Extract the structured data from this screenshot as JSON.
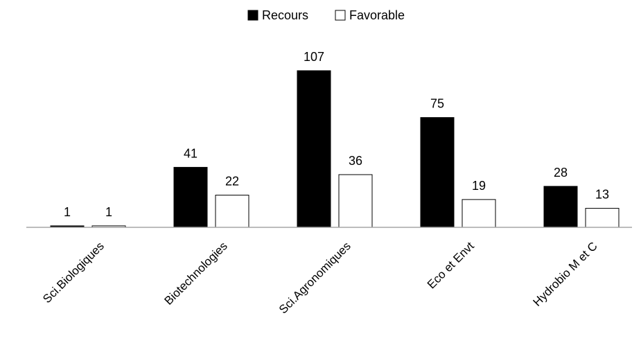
{
  "chart_data": {
    "type": "bar",
    "categories": [
      "Sci.Biologiques",
      "Biotechnologies",
      "Sci.Agronomiques",
      "Eco et Envt",
      "Hydrobio M et C"
    ],
    "series": [
      {
        "name": "Recours",
        "values": [
          1,
          41,
          107,
          75,
          28
        ],
        "color": "#000000"
      },
      {
        "name": "Favorable",
        "values": [
          1,
          22,
          36,
          19,
          13
        ],
        "color": "#ffffff"
      }
    ],
    "title": "",
    "xlabel": "",
    "ylabel": "",
    "ylim": [
      0,
      107
    ],
    "grid": false,
    "legend_position": "top",
    "data_labels": true,
    "axis_color": "#a6a6a6"
  }
}
